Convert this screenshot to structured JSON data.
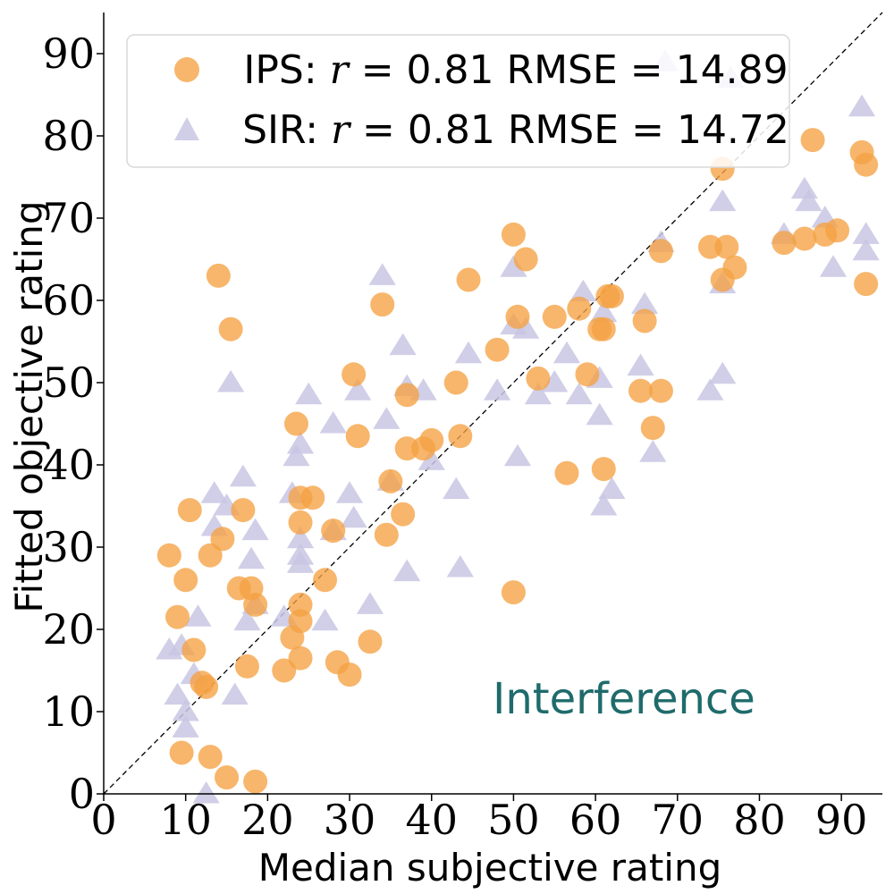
{
  "chart_data": {
    "type": "scatter",
    "xlabel": "Median subjective rating",
    "ylabel": "Fitted objective rating",
    "xlim": [
      0,
      95
    ],
    "ylim": [
      0,
      95
    ],
    "xticks": [
      "0",
      "10",
      "20",
      "30",
      "40",
      "50",
      "60",
      "70",
      "80",
      "90"
    ],
    "yticks": [
      "0",
      "10",
      "20",
      "30",
      "40",
      "50",
      "60",
      "70",
      "80",
      "90"
    ],
    "diagonal": true,
    "legend_position": "top-left",
    "annotation": "Interference",
    "annotation_color": "#1f6b6b",
    "series": [
      {
        "name": "IPS",
        "legend_label": "IPS: r = 0.81 RMSE = 14.89",
        "stat_text": ": ",
        "stat_r": "r",
        "stat_rest": " = 0.81 RMSE = 14.89",
        "marker": "circle",
        "color": "#f5a142",
        "points": [
          [
            8,
            29
          ],
          [
            9,
            21.5
          ],
          [
            10,
            26
          ],
          [
            10.5,
            34.5
          ],
          [
            11,
            17.5
          ],
          [
            12,
            13.5
          ],
          [
            12.5,
            13
          ],
          [
            13,
            29
          ],
          [
            14,
            63
          ],
          [
            14.5,
            31
          ],
          [
            15.5,
            56.5
          ],
          [
            16.5,
            25
          ],
          [
            17,
            34.5
          ],
          [
            17.5,
            15.5
          ],
          [
            18,
            25
          ],
          [
            18.5,
            23
          ],
          [
            9.5,
            5
          ],
          [
            13,
            4.5
          ],
          [
            15,
            2
          ],
          [
            18.5,
            1.5
          ],
          [
            22,
            15
          ],
          [
            23,
            19
          ],
          [
            23.5,
            45
          ],
          [
            24,
            36
          ],
          [
            24,
            33
          ],
          [
            24,
            23
          ],
          [
            24,
            21
          ],
          [
            24,
            16.5
          ],
          [
            25.5,
            36
          ],
          [
            27,
            26
          ],
          [
            28,
            32
          ],
          [
            28.5,
            16
          ],
          [
            30,
            14.5
          ],
          [
            30.5,
            51
          ],
          [
            31,
            43.5
          ],
          [
            32.5,
            18.5
          ],
          [
            34,
            59.5
          ],
          [
            34.5,
            31.5
          ],
          [
            35,
            38
          ],
          [
            36.5,
            34
          ],
          [
            37,
            48.5
          ],
          [
            37,
            42
          ],
          [
            39,
            42
          ],
          [
            40,
            43
          ],
          [
            43,
            50
          ],
          [
            43.5,
            43.5
          ],
          [
            44.5,
            62.5
          ],
          [
            48,
            54
          ],
          [
            50,
            68
          ],
          [
            50,
            24.5
          ],
          [
            50.5,
            58
          ],
          [
            51.5,
            65
          ],
          [
            53,
            50.5
          ],
          [
            55,
            58
          ],
          [
            56.5,
            39
          ],
          [
            58,
            59
          ],
          [
            59,
            51
          ],
          [
            60.5,
            56.5
          ],
          [
            61,
            39.5
          ],
          [
            61,
            56.5
          ],
          [
            61.5,
            60.5
          ],
          [
            62,
            60.5
          ],
          [
            65.5,
            49
          ],
          [
            66,
            57.5
          ],
          [
            67,
            44.5
          ],
          [
            68,
            49
          ],
          [
            68,
            66
          ],
          [
            74,
            66.5
          ],
          [
            75.5,
            62.5
          ],
          [
            75.5,
            76
          ],
          [
            76,
            66.5
          ],
          [
            77,
            64
          ],
          [
            83,
            67
          ],
          [
            85.5,
            67.5
          ],
          [
            86.5,
            79.5
          ],
          [
            88,
            68
          ],
          [
            89.5,
            68.5
          ],
          [
            92.5,
            78
          ],
          [
            93,
            76.5
          ],
          [
            93,
            62
          ]
        ]
      },
      {
        "name": "SIR",
        "legend_label": "SIR: r = 0.81 RMSE = 14.72",
        "stat_text": ": ",
        "stat_r": "r",
        "stat_rest": " = 0.81 RMSE = 14.72",
        "marker": "triangle",
        "color": "#c9c6e3",
        "points": [
          [
            8,
            17.5
          ],
          [
            9,
            12
          ],
          [
            9.5,
            18
          ],
          [
            10,
            10
          ],
          [
            10,
            8
          ],
          [
            11,
            14.5
          ],
          [
            11.5,
            21.5
          ],
          [
            13.5,
            36.5
          ],
          [
            13.5,
            32.5
          ],
          [
            15,
            35
          ],
          [
            15.5,
            50
          ],
          [
            16,
            12
          ],
          [
            17,
            38.5
          ],
          [
            17.5,
            21
          ],
          [
            18,
            28.5
          ],
          [
            18.5,
            32
          ],
          [
            18.5,
            23
          ],
          [
            12.5,
            0
          ],
          [
            22,
            21.5
          ],
          [
            23,
            36.5
          ],
          [
            23.5,
            41
          ],
          [
            24,
            42.5
          ],
          [
            24,
            31
          ],
          [
            24,
            29
          ],
          [
            24,
            28
          ],
          [
            25,
            48.5
          ],
          [
            27,
            21
          ],
          [
            28,
            45
          ],
          [
            28,
            32
          ],
          [
            30,
            36.5
          ],
          [
            30.5,
            33.5
          ],
          [
            31,
            49
          ],
          [
            32.5,
            23
          ],
          [
            34,
            63
          ],
          [
            34.5,
            45.5
          ],
          [
            35,
            38
          ],
          [
            36.5,
            54.5
          ],
          [
            37,
            27
          ],
          [
            37,
            49.5
          ],
          [
            39,
            49
          ],
          [
            40,
            40.5
          ],
          [
            43,
            37
          ],
          [
            43.5,
            27.5
          ],
          [
            44.5,
            53.5
          ],
          [
            48,
            49
          ],
          [
            50,
            64
          ],
          [
            50,
            57
          ],
          [
            50.5,
            41
          ],
          [
            51.5,
            56.5
          ],
          [
            53,
            48.5
          ],
          [
            55,
            50
          ],
          [
            56.5,
            53.5
          ],
          [
            58,
            48.5
          ],
          [
            58.5,
            61
          ],
          [
            60.5,
            46
          ],
          [
            60.5,
            50.5
          ],
          [
            61,
            35
          ],
          [
            61,
            58.5
          ],
          [
            62,
            37
          ],
          [
            65.5,
            52
          ],
          [
            66,
            59.5
          ],
          [
            67,
            41.5
          ],
          [
            68,
            67
          ],
          [
            68.5,
            89
          ],
          [
            74,
            49
          ],
          [
            75.5,
            62
          ],
          [
            75.5,
            51
          ],
          [
            75.5,
            72
          ],
          [
            76.5,
            87
          ],
          [
            83,
            68
          ],
          [
            85.5,
            73.5
          ],
          [
            86,
            72
          ],
          [
            88,
            70
          ],
          [
            89,
            64
          ],
          [
            92.5,
            83.5
          ],
          [
            93,
            68
          ],
          [
            93,
            66
          ]
        ]
      }
    ]
  }
}
